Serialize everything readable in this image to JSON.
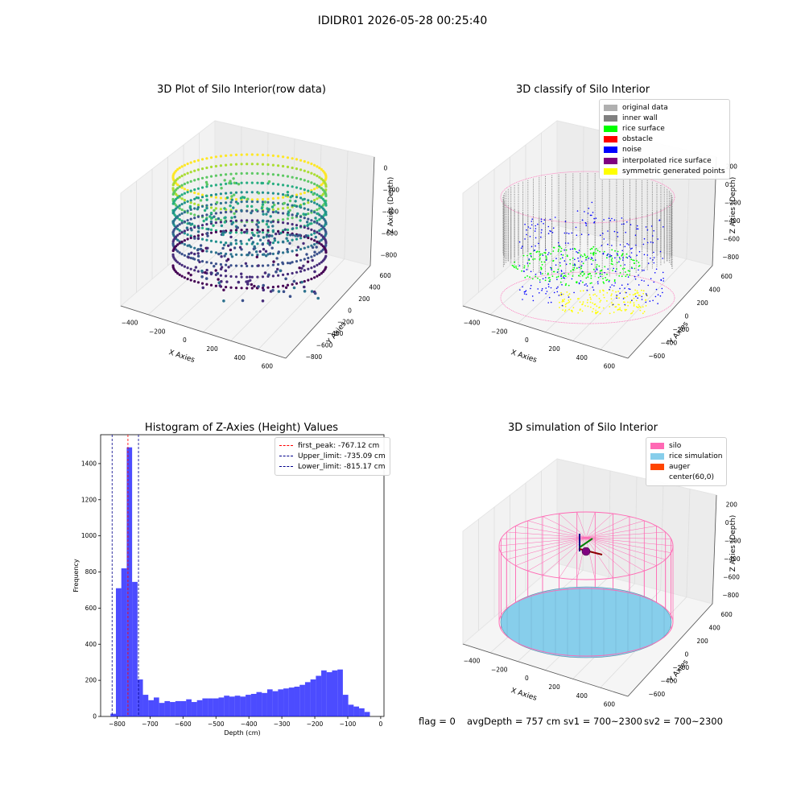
{
  "figure": {
    "suptitle": "IDIDR01 2026-05-28 00:25:40",
    "footer": {
      "flag": "flag = 0",
      "avg": "avgDepth = 757 cm",
      "sv1": "sv1 = 700~2300",
      "sv2": "sv2 = 700~2300"
    }
  },
  "colors": {
    "viridis": [
      "#440154",
      "#472c7a",
      "#3b518b",
      "#2c718e",
      "#21908d",
      "#27ad81",
      "#5cc863",
      "#aadc32",
      "#fde725"
    ],
    "gray_original": "#b0b0b0",
    "gray_wall": "#808080",
    "rice_surface": "#00ff00",
    "obstacle": "#ff0000",
    "noise": "#0000ff",
    "interp": "#800080",
    "symmetric": "#ffff00",
    "silo": "#ff69b4",
    "rice_sim": "#87ceeb",
    "auger": "#ff4500",
    "hist": "#0000ff"
  },
  "chart_data": [
    {
      "type": "scatter",
      "title": "3D Plot of Silo Interior(row data)",
      "xlabel": "X Axies",
      "ylabel": "Y Axies",
      "zlabel": "Z Axies (Depth)",
      "xticks": [
        "−400",
        "−200",
        "0",
        "200",
        "400",
        "600"
      ],
      "yticks": [
        "−800",
        "−600",
        "−400",
        "−200",
        "0",
        "200",
        "400",
        "600"
      ],
      "zticks": [
        "−800",
        "−600",
        "−400",
        "−200",
        "0"
      ],
      "legend": []
    },
    {
      "type": "scatter",
      "title": "3D classify of Silo Interior",
      "xlabel": "X Axies",
      "ylabel": "Y Axies",
      "zlabel": "Z Axies (Depth)",
      "xticks": [
        "−400",
        "−200",
        "0",
        "200",
        "400",
        "600"
      ],
      "yticks": [
        "−600",
        "−400",
        "−200",
        "0",
        "200",
        "400",
        "600"
      ],
      "zticks": [
        "−800",
        "−600",
        "−400",
        "−200",
        "0",
        "200"
      ],
      "legend": [
        "original data",
        "inner wall",
        "rice surface",
        "obstacle",
        "noise",
        "interpolated rice surface",
        "symmetric generated points"
      ]
    },
    {
      "type": "bar",
      "title": "Histogram of Z-Axies (Height) Values",
      "xlabel": "Depth (cm)",
      "ylabel": "Frequency",
      "xlim": [
        -850,
        10
      ],
      "ylim": [
        0,
        1560
      ],
      "xticks": [
        -800,
        -700,
        -600,
        -500,
        -400,
        -300,
        -200,
        -100,
        0
      ],
      "xtick_labels": [
        "−800",
        "−700",
        "−600",
        "−500",
        "−400",
        "−300",
        "−200",
        "−100",
        "0"
      ],
      "yticks": [
        0,
        200,
        400,
        600,
        800,
        1000,
        1200,
        1400
      ],
      "bin_start": -820,
      "bin_width": 16.4,
      "values": [
        15,
        710,
        820,
        1490,
        745,
        205,
        120,
        90,
        105,
        75,
        85,
        80,
        85,
        85,
        95,
        80,
        90,
        100,
        100,
        100,
        105,
        115,
        110,
        115,
        110,
        120,
        125,
        135,
        130,
        150,
        140,
        150,
        155,
        160,
        165,
        175,
        190,
        205,
        225,
        255,
        245,
        255,
        260,
        120,
        65,
        55,
        45,
        25
      ],
      "vlines": [
        {
          "x": -767.12,
          "color": "#ff0000",
          "label": "first_peak: -767.12 cm"
        },
        {
          "x": -735.09,
          "color": "#00008b",
          "label": "Upper_limit: -735.09 cm"
        },
        {
          "x": -815.17,
          "color": "#00008b",
          "label": "Lower_limit: -815.17 cm"
        }
      ]
    },
    {
      "type": "scatter",
      "title": "3D simulation of Silo Interior",
      "xlabel": "X Axies",
      "ylabel": "Y Axies",
      "zlabel": "Z Axies (Depth)",
      "xticks": [
        "−400",
        "−200",
        "0",
        "200",
        "400",
        "600"
      ],
      "yticks": [
        "−600",
        "−400",
        "−200",
        "0",
        "200",
        "400",
        "600"
      ],
      "zticks": [
        "−800",
        "−600",
        "−400",
        "−200",
        "0",
        "200"
      ],
      "legend": [
        "silo",
        "rice simulation",
        "auger",
        "center(60,0)"
      ]
    }
  ]
}
